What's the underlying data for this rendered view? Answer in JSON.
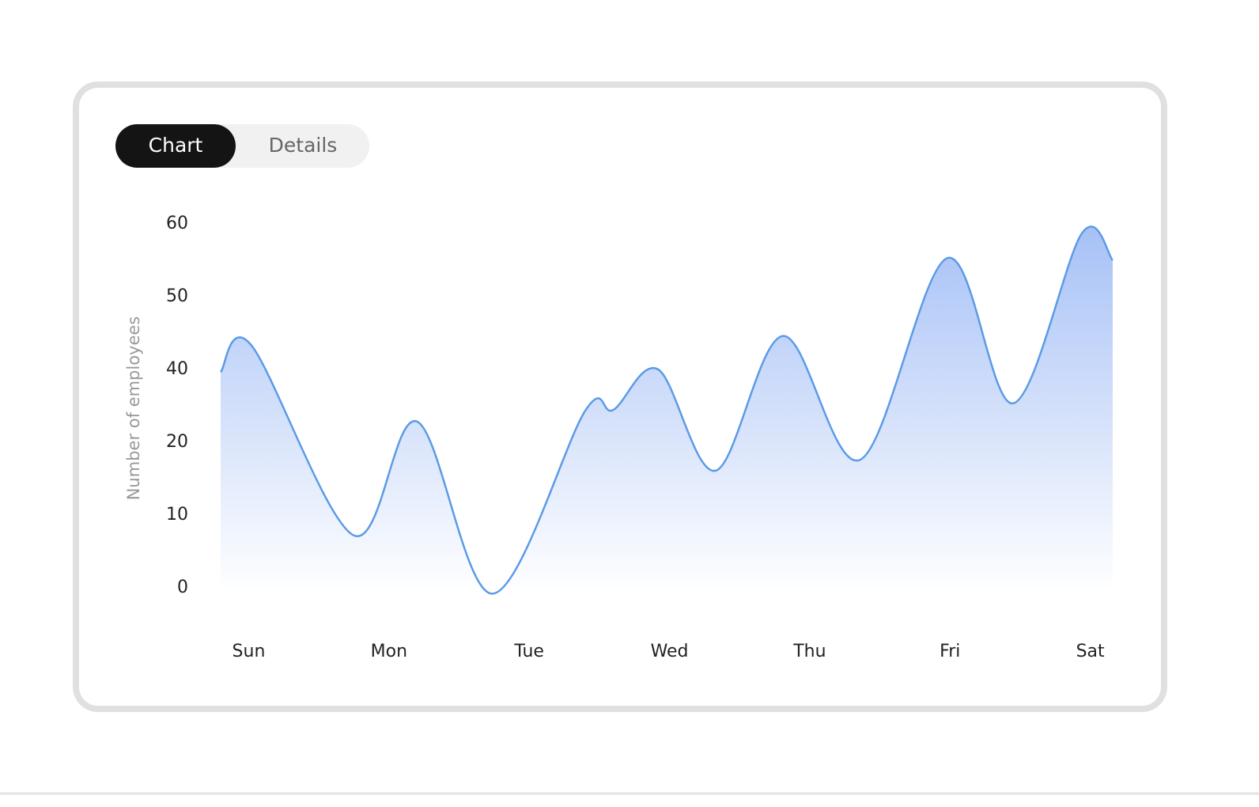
{
  "tabs": [
    "Chart",
    "Details"
  ],
  "chart_data": {
    "type": "area",
    "y_label": "Number of employees",
    "x": [
      -0.2,
      0.02,
      0.75,
      1.2,
      1.74,
      2.4,
      2.6,
      2.92,
      3.33,
      3.81,
      4.36,
      4.98,
      5.45,
      5.94,
      6.16
    ],
    "values": [
      39.3,
      43.3,
      7.2,
      25.7,
      -0.8,
      28.7,
      28.9,
      40,
      16.1,
      44.6,
      17.6,
      55.3,
      30.7,
      58.7,
      55
    ],
    "color": "#5b9be6",
    "xlim": [
      -0.2,
      6.16
    ],
    "xticks": [
      {
        "value": 0,
        "label": "Sun"
      },
      {
        "value": 1,
        "label": "Mon"
      },
      {
        "value": 2,
        "label": "Tue"
      },
      {
        "value": 3,
        "label": "Wed"
      },
      {
        "value": 4,
        "label": "Thu"
      },
      {
        "value": 5,
        "label": "Fri"
      },
      {
        "value": 6,
        "label": "Sat"
      }
    ],
    "ylim": [
      0,
      60
    ],
    "yticks": [
      0,
      10,
      20,
      40,
      50,
      60
    ]
  }
}
